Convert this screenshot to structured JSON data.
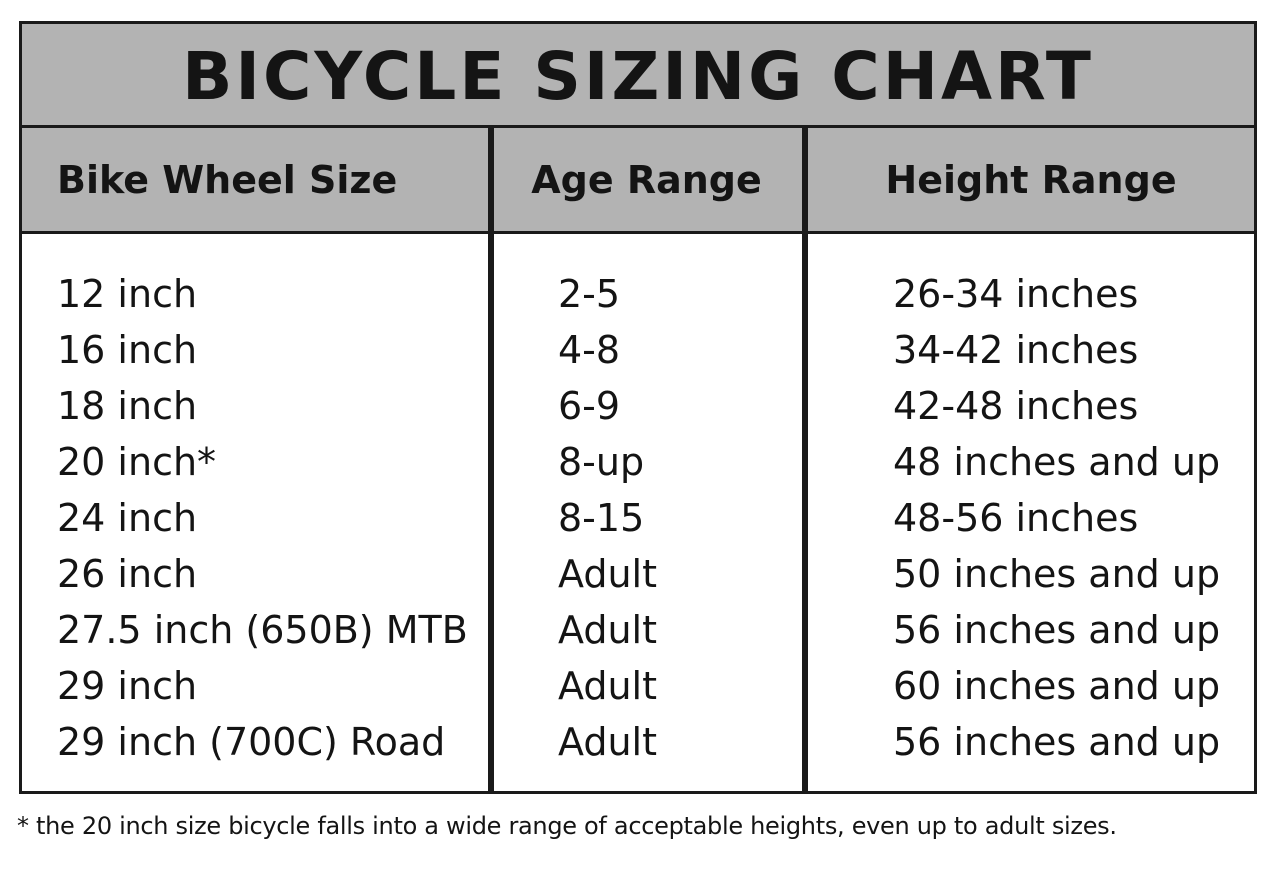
{
  "chart_data": {
    "type": "table",
    "title": "BICYCLE SIZING CHART",
    "columns": [
      "Bike Wheel Size",
      "Age Range",
      "Height Range"
    ],
    "rows": [
      [
        "12 inch",
        "2-5",
        "26-34 inches"
      ],
      [
        "16 inch",
        "4-8",
        "34-42 inches"
      ],
      [
        "18 inch",
        "6-9",
        "42-48 inches"
      ],
      [
        "20 inch*",
        "8-up",
        "48 inches and up"
      ],
      [
        "24 inch",
        "8-15",
        "48-56 inches"
      ],
      [
        "26 inch",
        "Adult",
        "50 inches and up"
      ],
      [
        "27.5 inch (650B) MTB",
        "Adult",
        "56 inches and up"
      ],
      [
        "29 inch",
        "Adult",
        "60 inches and up"
      ],
      [
        "29 inch (700C) Road",
        "Adult",
        "56 inches and up"
      ]
    ],
    "footnote": "* the 20 inch size bicycle falls into a wide range of acceptable heights, even up to adult sizes."
  },
  "colors": {
    "header_background": "#b3b3b3",
    "border": "#1a1a1a",
    "text": "#141414",
    "background": "#ffffff"
  }
}
